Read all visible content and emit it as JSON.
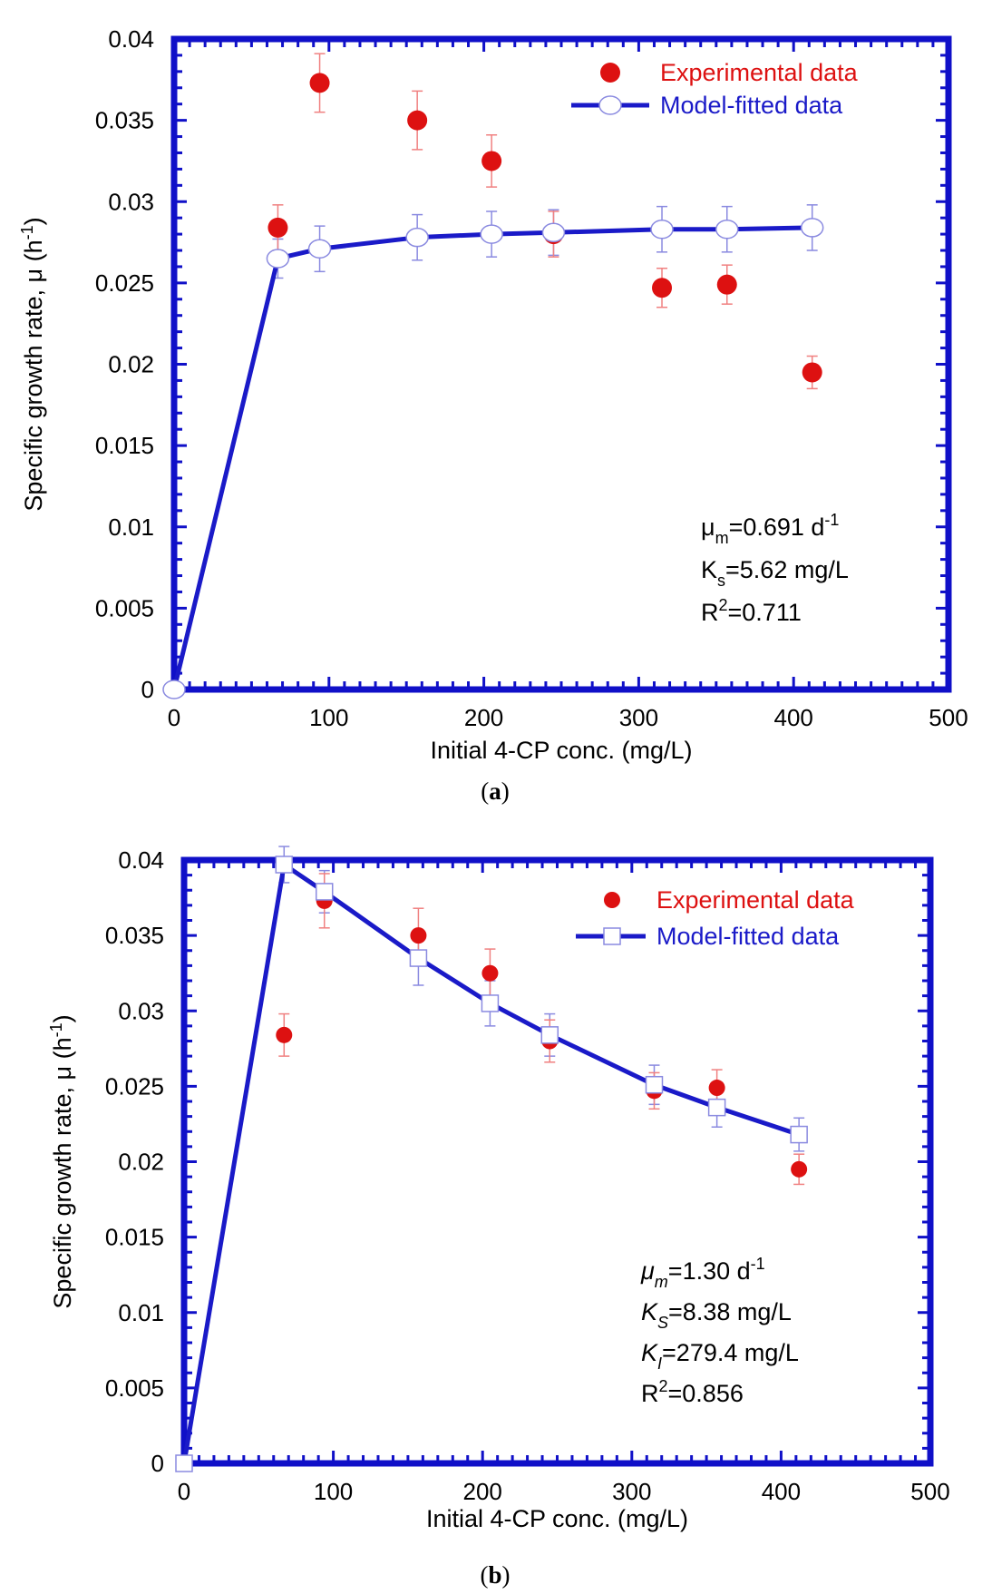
{
  "chart_data": [
    {
      "type": "scatter",
      "panel": "a",
      "caption_letter": "a",
      "xlabel": "Initial 4-CP conc. (mg/L)",
      "ylabel": "Specific growth rate, μ (h",
      "ylabel_sup": "-1",
      "ylabel_tail": ")",
      "xlim": [
        0,
        500
      ],
      "ylim": [
        0,
        0.04
      ],
      "xticks": [
        0,
        100,
        200,
        300,
        400,
        500
      ],
      "yticks": [
        0,
        0.005,
        0.01,
        0.015,
        0.02,
        0.025,
        0.03,
        0.035,
        0.04
      ],
      "legend": [
        "Experimental data",
        "Model-fitted data"
      ],
      "colors": {
        "frame": "#1010c8",
        "experimental": "#dd1111",
        "model": "#1a1ac8",
        "errbar": "#f08080",
        "modelerr": "#8a8ae0"
      },
      "series": [
        {
          "name": "Experimental data",
          "marker": "filled-circle",
          "x": [
            67,
            94,
            157,
            205,
            245,
            315,
            357,
            412
          ],
          "y": [
            0.0284,
            0.0373,
            0.035,
            0.0325,
            0.028,
            0.0247,
            0.0249,
            0.0195
          ],
          "err": [
            0.0014,
            0.0018,
            0.0018,
            0.0016,
            0.0014,
            0.0012,
            0.0012,
            0.001
          ]
        },
        {
          "name": "Model-fitted data",
          "marker": "open-circle",
          "x": [
            0,
            67,
            94,
            157,
            205,
            245,
            315,
            357,
            412
          ],
          "y": [
            0,
            0.0265,
            0.0271,
            0.0278,
            0.028,
            0.0281,
            0.0283,
            0.0283,
            0.0284
          ],
          "err": [
            0,
            0.0012,
            0.0014,
            0.0014,
            0.0014,
            0.0014,
            0.0014,
            0.0014,
            0.0014
          ]
        }
      ],
      "annotations": [
        {
          "base": "μ",
          "sub": "m",
          "text": "=0.691 d",
          "sup": "-1"
        },
        {
          "base": "K",
          "sub": "s",
          "text": "=5.62 mg/L",
          "sup": ""
        },
        {
          "base": "R",
          "sup": "2",
          "text": "=0.711",
          "sub": ""
        }
      ]
    },
    {
      "type": "scatter",
      "panel": "b",
      "caption_letter": "b",
      "xlabel": "Initial 4-CP conc. (mg/L)",
      "ylabel": "Specific growth rate, μ (h",
      "ylabel_sup": "-1",
      "ylabel_tail": ")",
      "xlim": [
        0,
        500
      ],
      "ylim": [
        0,
        0.04
      ],
      "xticks": [
        0,
        100,
        200,
        300,
        400,
        500
      ],
      "yticks": [
        0,
        0.005,
        0.01,
        0.015,
        0.02,
        0.025,
        0.03,
        0.035,
        0.04
      ],
      "legend": [
        "Experimental data",
        "Model-fitted data"
      ],
      "colors": {
        "frame": "#1010c8",
        "experimental": "#dd1111",
        "model": "#1a1ac8",
        "errbar": "#f08080",
        "modelerr": "#8a8ae0"
      },
      "series": [
        {
          "name": "Experimental data",
          "marker": "filled-circle",
          "x": [
            67,
            94,
            157,
            205,
            245,
            315,
            357,
            412
          ],
          "y": [
            0.0284,
            0.0373,
            0.035,
            0.0325,
            0.028,
            0.0247,
            0.0249,
            0.0195
          ],
          "err": [
            0.0014,
            0.0018,
            0.0018,
            0.0016,
            0.0014,
            0.0012,
            0.0012,
            0.001
          ]
        },
        {
          "name": "Model-fitted data",
          "marker": "open-square",
          "x": [
            0,
            67,
            94,
            157,
            205,
            245,
            315,
            357,
            412
          ],
          "y": [
            0,
            0.0397,
            0.0379,
            0.0335,
            0.0305,
            0.0284,
            0.0251,
            0.0236,
            0.0218
          ],
          "err": [
            0,
            0.0012,
            0.0014,
            0.0018,
            0.0015,
            0.0014,
            0.0013,
            0.0013,
            0.0011
          ]
        }
      ],
      "annotations": [
        {
          "base": "μ",
          "sub": "m",
          "text": "=1.30 d",
          "sup": "-1",
          "italic": true
        },
        {
          "base": "K",
          "sub": "S",
          "text": "=8.38 mg/L",
          "sup": "",
          "italic": true
        },
        {
          "base": "K",
          "sub": "I",
          "text": "=279.4 mg/L",
          "sup": "",
          "italic": true
        },
        {
          "base": "R",
          "sup": "2",
          "text": "=0.856",
          "sub": ""
        }
      ]
    }
  ]
}
